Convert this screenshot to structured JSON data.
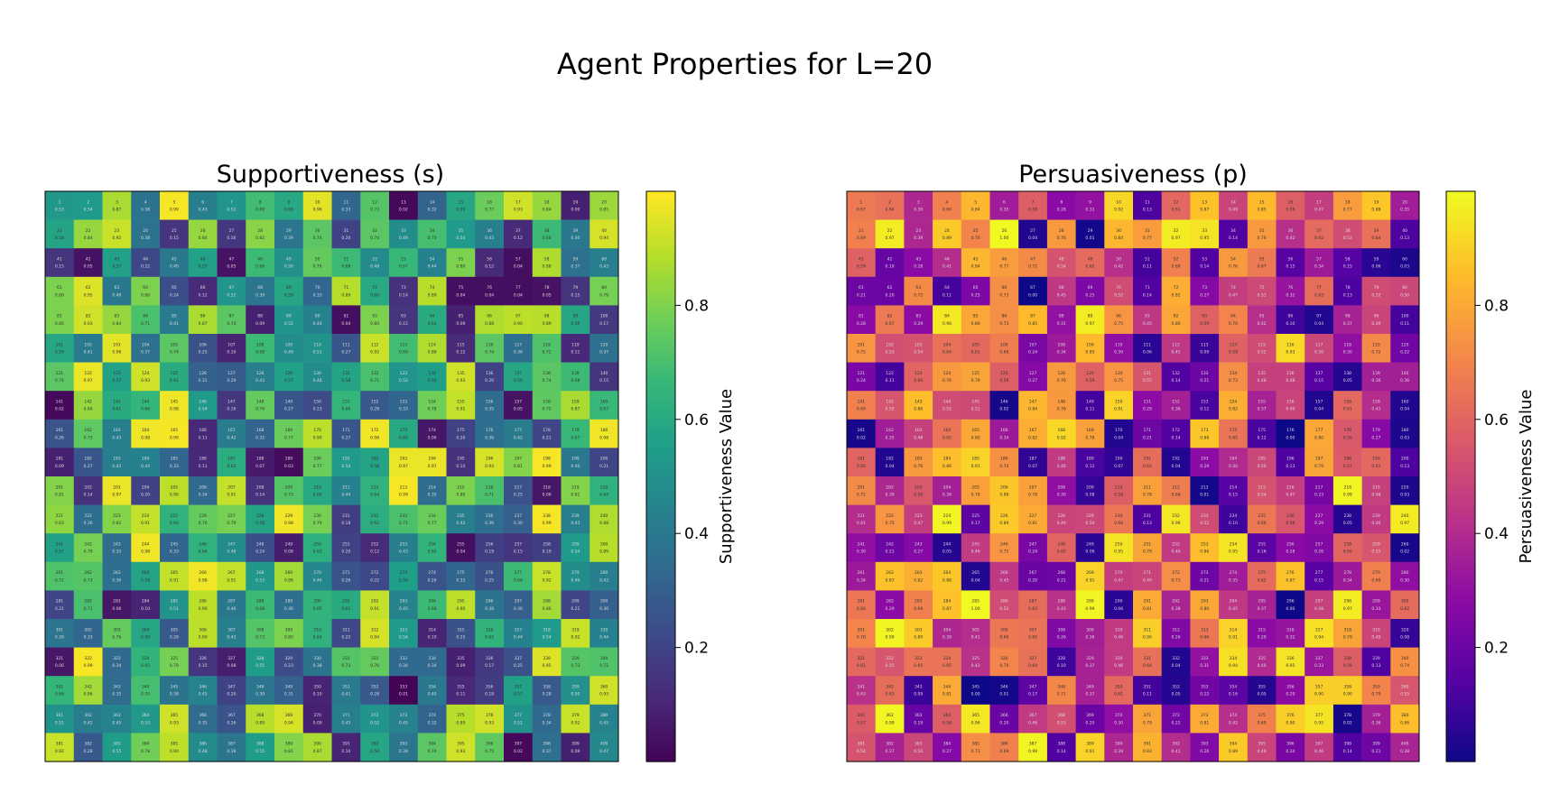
{
  "figure": {
    "suptitle": "Agent Properties for L=20"
  },
  "chart_data": [
    {
      "type": "heatmap",
      "title": "Supportiveness (s)",
      "colormap": "viridis",
      "grid_size": 20,
      "grid": "20x20 agents, values 0-1 (generated per-cell, see script)",
      "colorbar": {
        "label": "Supportiveness Value",
        "ticks": [
          0.2,
          0.4,
          0.6,
          0.8
        ],
        "range": [
          0,
          1
        ]
      },
      "legend": "colorbar-right",
      "grid_lines": false,
      "cell_annotations": "agent index and value (tiny)"
    },
    {
      "type": "heatmap",
      "title": "Persuasiveness (p)",
      "colormap": "plasma",
      "grid_size": 20,
      "grid": "20x20 agents, values 0-1 (generated per-cell, see script)",
      "colorbar": {
        "label": "Persuasiveness Value",
        "ticks": [
          0.2,
          0.4,
          0.6,
          0.8
        ],
        "range": [
          0,
          1
        ]
      },
      "legend": "colorbar-right",
      "grid_lines": false,
      "cell_annotations": "agent index and value (tiny)"
    }
  ]
}
